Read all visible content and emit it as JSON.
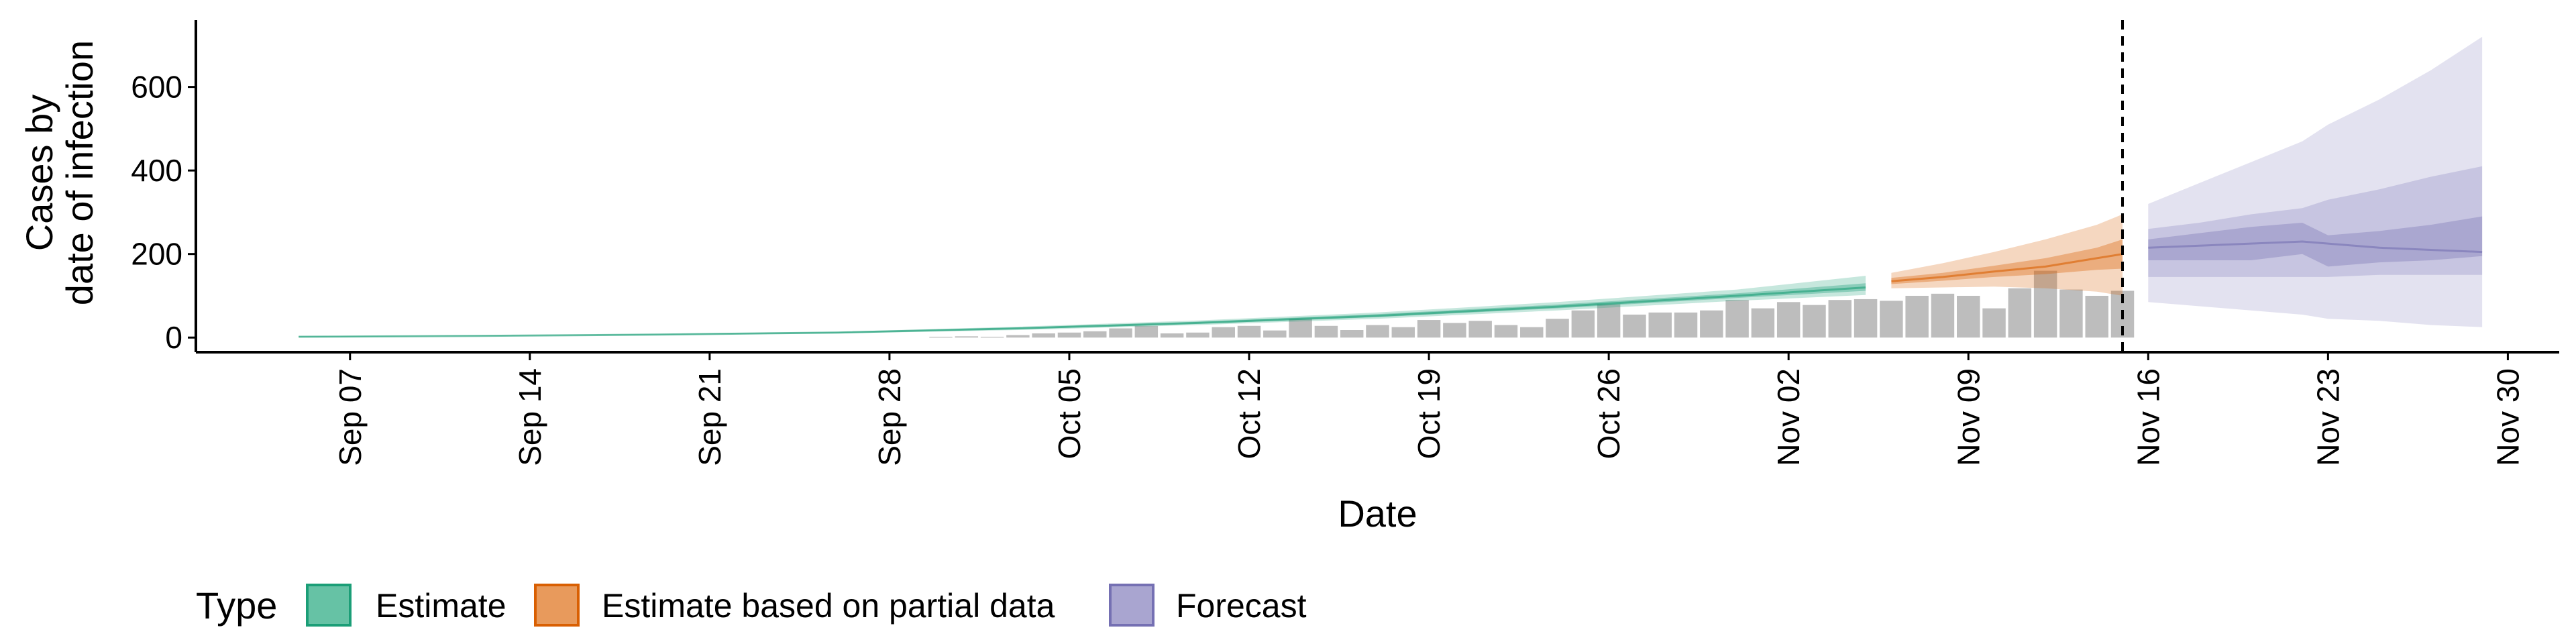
{
  "chart_data": {
    "type": "area",
    "xlabel": "Date",
    "ylabel_lines": [
      "Cases by",
      "date of infection"
    ],
    "ylim": [
      -35,
      760
    ],
    "yticks": [
      0,
      200,
      400,
      600
    ],
    "xlim": [
      "2020-09-01",
      "2020-12-02"
    ],
    "xticks": [
      {
        "date": "2020-09-07",
        "label": "Sep 07"
      },
      {
        "date": "2020-09-14",
        "label": "Sep 14"
      },
      {
        "date": "2020-09-21",
        "label": "Sep 21"
      },
      {
        "date": "2020-09-28",
        "label": "Sep 28"
      },
      {
        "date": "2020-10-05",
        "label": "Oct 05"
      },
      {
        "date": "2020-10-12",
        "label": "Oct 12"
      },
      {
        "date": "2020-10-19",
        "label": "Oct 19"
      },
      {
        "date": "2020-10-26",
        "label": "Oct 26"
      },
      {
        "date": "2020-11-02",
        "label": "Nov 02"
      },
      {
        "date": "2020-11-09",
        "label": "Nov 09"
      },
      {
        "date": "2020-11-16",
        "label": "Nov 16"
      },
      {
        "date": "2020-11-23",
        "label": "Nov 23"
      },
      {
        "date": "2020-11-30",
        "label": "Nov 30"
      }
    ],
    "vline_date": "2020-11-15",
    "grid": false,
    "legend": {
      "position": "bottom-left",
      "title": "Type",
      "entries": [
        {
          "label": "Estimate",
          "fill": "#66c2a5",
          "stroke": "#1b9e77"
        },
        {
          "label": "Estimate based on partial data",
          "fill": "#e89a5c",
          "stroke": "#d95f02"
        },
        {
          "label": "Forecast",
          "fill": "#a9a5d0",
          "stroke": "#7570b3"
        }
      ]
    },
    "colors": {
      "Estimate": "#1b9e77",
      "Estimate based on partial data": "#d95f02",
      "Forecast": "#7570b3",
      "bars": "#bdbdbd"
    },
    "bars": {
      "dates": [
        "2020-09-30",
        "2020-10-01",
        "2020-10-02",
        "2020-10-03",
        "2020-10-04",
        "2020-10-05",
        "2020-10-06",
        "2020-10-07",
        "2020-10-08",
        "2020-10-09",
        "2020-10-10",
        "2020-10-11",
        "2020-10-12",
        "2020-10-13",
        "2020-10-14",
        "2020-10-15",
        "2020-10-16",
        "2020-10-17",
        "2020-10-18",
        "2020-10-19",
        "2020-10-20",
        "2020-10-21",
        "2020-10-22",
        "2020-10-23",
        "2020-10-24",
        "2020-10-25",
        "2020-10-26",
        "2020-10-27",
        "2020-10-28",
        "2020-10-29",
        "2020-10-30",
        "2020-10-31",
        "2020-11-01",
        "2020-11-02",
        "2020-11-03",
        "2020-11-04",
        "2020-11-05",
        "2020-11-06",
        "2020-11-07",
        "2020-11-08",
        "2020-11-09",
        "2020-11-10",
        "2020-11-11",
        "2020-11-12",
        "2020-11-13",
        "2020-11-14",
        "2020-11-15"
      ],
      "values": [
        2,
        3,
        2,
        6,
        10,
        12,
        15,
        22,
        28,
        10,
        12,
        25,
        28,
        17,
        45,
        28,
        18,
        30,
        25,
        42,
        35,
        40,
        30,
        25,
        45,
        65,
        80,
        55,
        60,
        60,
        65,
        90,
        70,
        85,
        78,
        90,
        92,
        88,
        100,
        105,
        100,
        70,
        118,
        160,
        115,
        100,
        112
      ]
    },
    "series": [
      {
        "name": "Estimate",
        "dates": [
          "2020-09-05",
          "2020-09-12",
          "2020-09-19",
          "2020-09-26",
          "2020-10-03",
          "2020-10-10",
          "2020-10-17",
          "2020-10-24",
          "2020-10-31",
          "2020-11-05"
        ],
        "median": [
          2,
          4,
          7,
          12,
          22,
          35,
          52,
          74,
          100,
          120
        ],
        "inner_lower": [
          2,
          4,
          7,
          11,
          20,
          33,
          49,
          70,
          95,
          112
        ],
        "inner_upper": [
          3,
          5,
          8,
          13,
          24,
          38,
          56,
          79,
          106,
          130
        ],
        "outer_lower": [
          1,
          3,
          6,
          10,
          18,
          30,
          45,
          65,
          88,
          102
        ],
        "outer_upper": [
          3,
          5,
          9,
          14,
          26,
          41,
          60,
          85,
          115,
          148
        ]
      },
      {
        "name": "Estimate based on partial data",
        "dates": [
          "2020-11-06",
          "2020-11-08",
          "2020-11-10",
          "2020-11-12",
          "2020-11-14",
          "2020-11-15"
        ],
        "median": [
          135,
          145,
          158,
          170,
          190,
          200
        ],
        "inner_lower": [
          128,
          136,
          145,
          152,
          162,
          165
        ],
        "inner_upper": [
          143,
          155,
          172,
          190,
          215,
          235
        ],
        "outer_lower": [
          118,
          120,
          122,
          118,
          110,
          100
        ],
        "outer_upper": [
          155,
          178,
          205,
          235,
          270,
          295
        ]
      },
      {
        "name": "Forecast",
        "dates": [
          "2020-11-16",
          "2020-11-18",
          "2020-11-20",
          "2020-11-22",
          "2020-11-23",
          "2020-11-25",
          "2020-11-27",
          "2020-11-29"
        ],
        "median": [
          215,
          220,
          225,
          230,
          225,
          215,
          210,
          205
        ],
        "inner_lower": [
          185,
          185,
          185,
          200,
          170,
          180,
          185,
          195
        ],
        "inner_upper": [
          235,
          250,
          265,
          275,
          245,
          255,
          270,
          290
        ],
        "outer_lower": [
          145,
          145,
          145,
          145,
          145,
          150,
          150,
          150
        ],
        "outer_upper": [
          260,
          275,
          295,
          310,
          330,
          355,
          385,
          410
        ],
        "widest_lower": [
          85,
          75,
          65,
          55,
          45,
          40,
          30,
          25
        ],
        "widest_upper": [
          320,
          370,
          420,
          470,
          510,
          570,
          640,
          720
        ]
      }
    ]
  }
}
